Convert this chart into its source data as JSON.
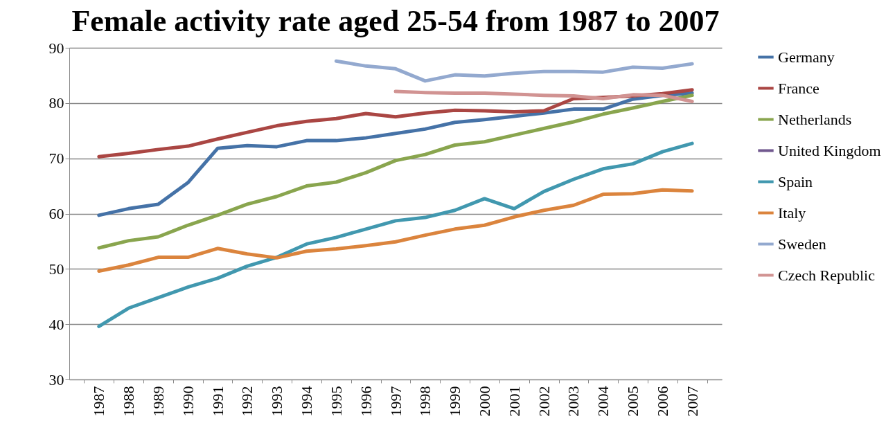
{
  "chart_data": {
    "type": "line",
    "title": "Female activity rate aged 25-54 from 1987 to 2007",
    "categories": [
      "1987",
      "1988",
      "1989",
      "1990",
      "1991",
      "1992",
      "1993",
      "1994",
      "1995",
      "1996",
      "1997",
      "1998",
      "1999",
      "2000",
      "2001",
      "2002",
      "2003",
      "2004",
      "2005",
      "2006",
      "2007"
    ],
    "series": [
      {
        "name": "Germany",
        "color": "#4572a7",
        "values": [
          59.7,
          60.9,
          61.7,
          65.6,
          71.8,
          72.3,
          72.1,
          73.2,
          73.2,
          73.7,
          74.5,
          75.3,
          76.5,
          77.0,
          77.6,
          78.2,
          78.9,
          78.9,
          80.7,
          81.4,
          81.8
        ]
      },
      {
        "name": "France",
        "color": "#aa4643",
        "values": [
          70.3,
          70.9,
          71.6,
          72.2,
          73.5,
          74.7,
          75.9,
          76.7,
          77.2,
          78.1,
          77.5,
          78.2,
          78.7,
          78.6,
          78.4,
          78.6,
          80.8,
          81.0,
          81.3,
          81.7,
          82.4
        ]
      },
      {
        "name": "Netherlands",
        "color": "#89a54e",
        "values": [
          53.8,
          55.1,
          55.8,
          57.9,
          59.7,
          61.7,
          63.1,
          65.0,
          65.7,
          67.4,
          69.6,
          70.7,
          72.4,
          73.0,
          74.2,
          75.4,
          76.6,
          78.0,
          79.1,
          80.3,
          81.4
        ]
      },
      {
        "name": "United Kingdom",
        "color": "#71588f",
        "values": [
          null,
          null,
          null,
          null,
          null,
          null,
          null,
          null,
          null,
          null,
          null,
          null,
          null,
          null,
          null,
          null,
          null,
          null,
          null,
          null,
          null
        ]
      },
      {
        "name": "Spain",
        "color": "#4198af",
        "values": [
          39.6,
          42.9,
          44.8,
          46.7,
          48.3,
          50.5,
          52.1,
          54.5,
          55.7,
          57.2,
          58.7,
          59.3,
          60.6,
          62.7,
          60.9,
          64.0,
          66.2,
          68.1,
          69.0,
          71.2,
          72.7
        ]
      },
      {
        "name": "Italy",
        "color": "#db843d",
        "values": [
          49.6,
          50.7,
          52.1,
          52.1,
          53.7,
          52.7,
          52.0,
          53.2,
          53.6,
          54.2,
          54.9,
          56.1,
          57.2,
          57.9,
          59.4,
          60.6,
          61.5,
          63.5,
          63.6,
          64.3,
          64.1
        ]
      },
      {
        "name": "Sweden",
        "color": "#93a9cf",
        "values": [
          null,
          null,
          null,
          null,
          null,
          null,
          null,
          null,
          87.6,
          86.7,
          86.2,
          84.0,
          85.1,
          84.9,
          85.4,
          85.7,
          85.7,
          85.6,
          86.5,
          86.3,
          87.1
        ]
      },
      {
        "name": "Czech Republic",
        "color": "#d19392",
        "values": [
          null,
          null,
          null,
          null,
          null,
          null,
          null,
          null,
          null,
          null,
          82.1,
          81.9,
          81.8,
          81.8,
          81.6,
          81.4,
          81.3,
          80.8,
          81.5,
          81.4,
          80.3
        ]
      }
    ],
    "ylim": [
      30,
      90
    ],
    "yticks": [
      30,
      40,
      50,
      60,
      70,
      80,
      90
    ],
    "grid": "y",
    "legend": "right",
    "line_style": "solid",
    "marker": "none"
  }
}
